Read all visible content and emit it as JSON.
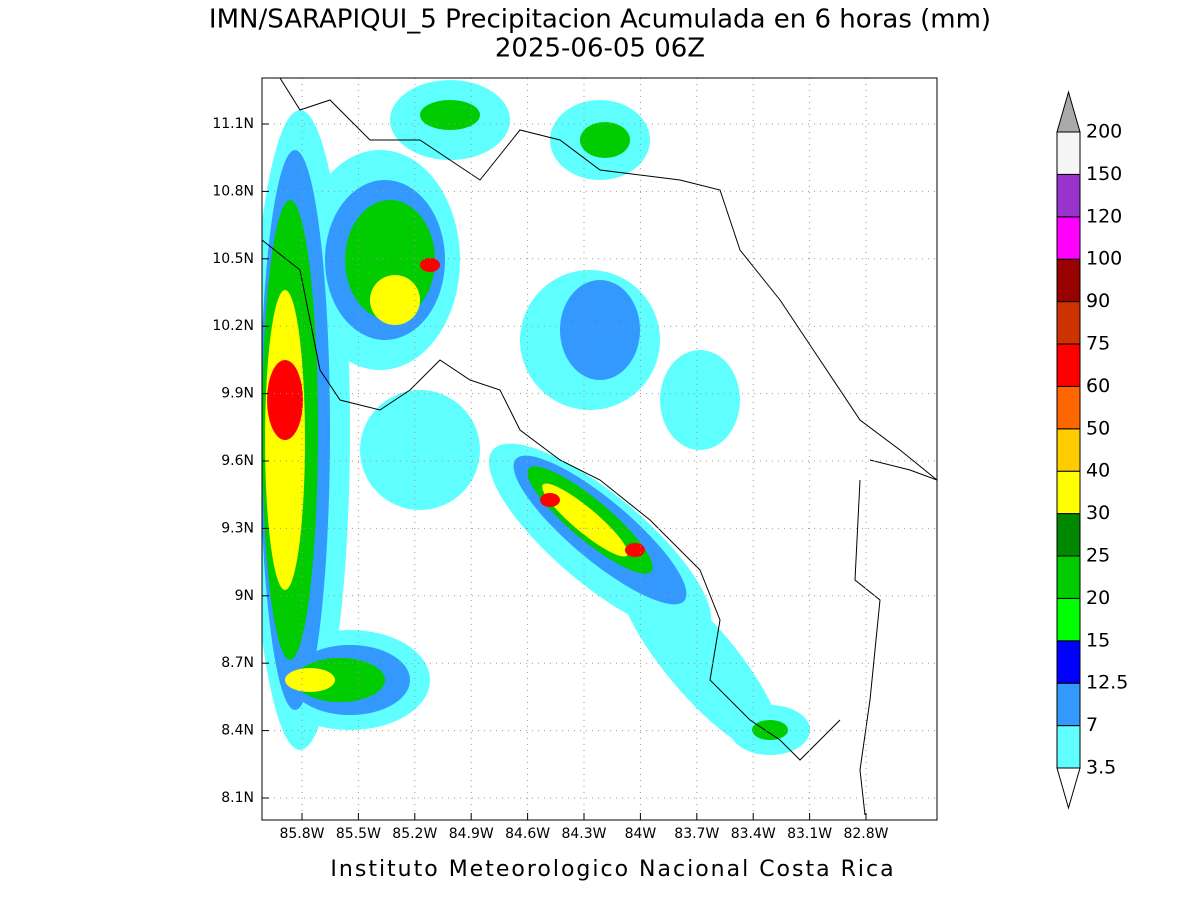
{
  "header": {
    "title": "IMN/SARAPIQUI_5 Precipitacion Acumulada en 6 horas (mm)",
    "subtitle": "2025-06-05 06Z"
  },
  "map": {
    "lat_labels": [
      "11.1N",
      "10.8N",
      "10.5N",
      "10.2N",
      "9.9N",
      "9.6N",
      "9.3N",
      "9N",
      "8.7N",
      "8.4N",
      "8.1N"
    ],
    "lon_labels": [
      "85.8W",
      "85.5W",
      "85.2W",
      "84.9W",
      "84.6W",
      "84.3W",
      "84W",
      "83.7W",
      "83.4W",
      "83.1W",
      "82.8W"
    ]
  },
  "colorbar": {
    "levels": [
      3.5,
      7,
      12.5,
      15,
      20,
      25,
      30,
      40,
      50,
      60,
      75,
      90,
      100,
      120,
      150,
      200
    ],
    "colors": [
      "#ffffff",
      "#5fffff",
      "#3399ff",
      "#0000ff",
      "#00ff00",
      "#00cc00",
      "#008800",
      "#ffff00",
      "#ffcc00",
      "#ff6600",
      "#ff0000",
      "#cc3300",
      "#990000",
      "#ff00ff",
      "#9933cc",
      "#f5f5f5",
      "#aaaaaa"
    ]
  },
  "footer": "Instituto Meteorologico Nacional Costa Rica"
}
